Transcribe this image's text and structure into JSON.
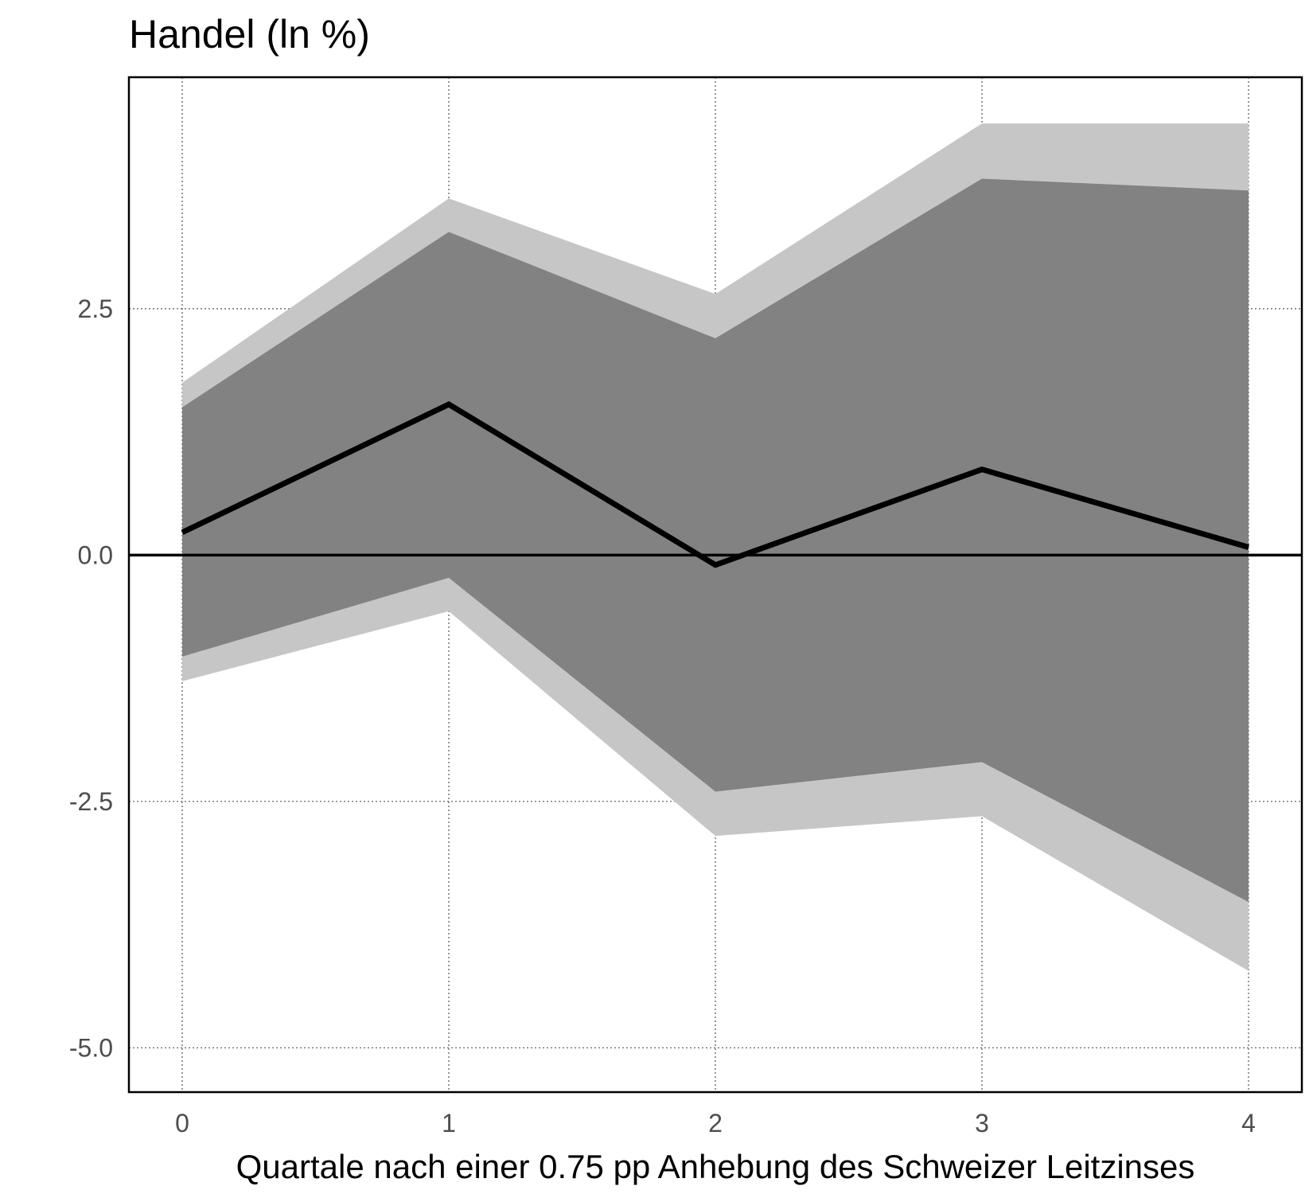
{
  "chart_data": {
    "type": "area",
    "title": "Handel (ln %)",
    "xlabel": "Quartale nach einer 0.75 pp Anhebung des Schweizer Leitzinses",
    "ylabel": "",
    "x": [
      0,
      1,
      2,
      3,
      4
    ],
    "xlim": [
      -0.2,
      4.2
    ],
    "ylim": [
      -5.45,
      4.85
    ],
    "x_ticks": [
      "0",
      "1",
      "2",
      "3",
      "4"
    ],
    "y_ticks": [
      {
        "value": 2.5,
        "label": "2.5"
      },
      {
        "value": 0.0,
        "label": "0.0"
      },
      {
        "value": -2.5,
        "label": "-2.5"
      },
      {
        "value": -5.0,
        "label": "-5.0"
      }
    ],
    "grid": true,
    "zero_line": 0,
    "series": [
      {
        "role": "outer-band",
        "lower": [
          -1.28,
          -0.57,
          -2.85,
          -2.65,
          -4.22
        ],
        "upper": [
          1.75,
          3.62,
          2.65,
          4.38,
          4.38
        ],
        "color": "#c6c6c6"
      },
      {
        "role": "inner-band",
        "lower": [
          -1.03,
          -0.23,
          -2.4,
          -2.1,
          -3.52
        ],
        "upper": [
          1.5,
          3.28,
          2.2,
          3.82,
          3.7
        ],
        "color": "#828282"
      },
      {
        "role": "point-estimate",
        "values": [
          0.23,
          1.53,
          -0.1,
          0.87,
          0.08
        ],
        "color": "#000000"
      }
    ]
  }
}
